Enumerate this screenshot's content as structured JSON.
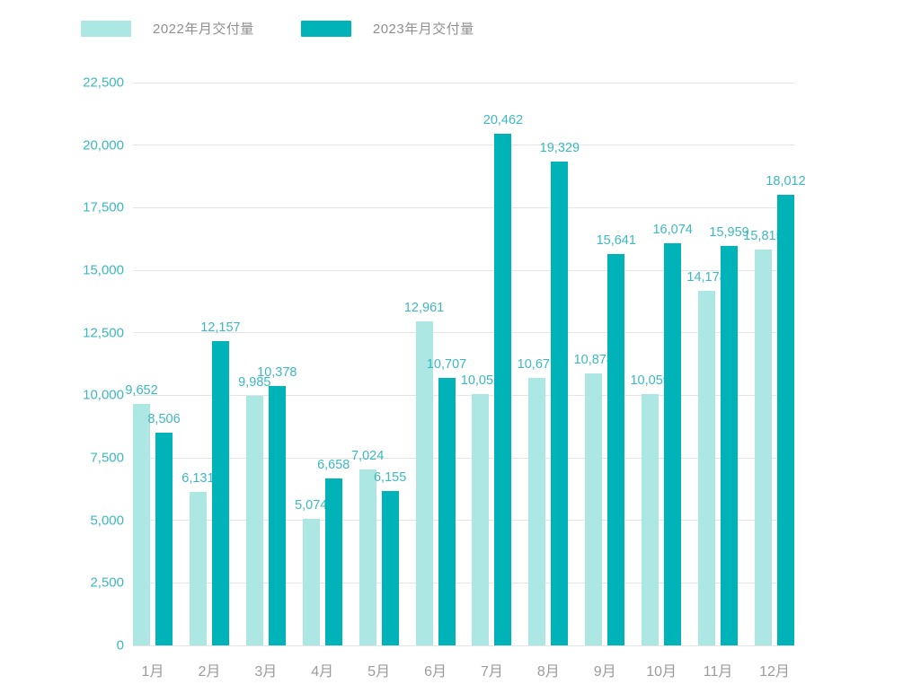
{
  "legend": {
    "items": [
      {
        "label": "2022年月交付量",
        "color": "#ade7e3"
      },
      {
        "label": "2023年月交付量",
        "color": "#00b3b8"
      }
    ]
  },
  "chart_data": {
    "type": "bar",
    "title": "",
    "categories": [
      "1月",
      "2月",
      "3月",
      "4月",
      "5月",
      "6月",
      "7月",
      "8月",
      "9月",
      "10月",
      "11月",
      "12月"
    ],
    "series": [
      {
        "name": "2022年月交付量",
        "color": "#ade7e3",
        "values": [
          9652,
          6131,
          9985,
          5074,
          7024,
          12961,
          10052,
          10677,
          10878,
          10059,
          14178,
          15815
        ]
      },
      {
        "name": "2023年月交付量",
        "color": "#00b3b8",
        "values": [
          8506,
          12157,
          10378,
          6658,
          6155,
          10707,
          20462,
          19329,
          15641,
          16074,
          15959,
          18012
        ]
      }
    ],
    "value_labels": [
      "9,652",
      "8,506",
      "6,131",
      "12,157",
      "9,985",
      "10,378",
      "5,074",
      "6,658",
      "7,024",
      "6,155",
      "12,961",
      "10,707",
      "10,052",
      "20,462",
      "10,677",
      "19,329",
      "10,878",
      "15,641",
      "10,059",
      "16,074",
      "14,178",
      "15,959",
      "15,815",
      "18,012"
    ],
    "xlabel": "",
    "ylabel": "",
    "ylim": [
      0,
      22500
    ],
    "ytick_interval": 2500,
    "yticks": [
      "22,500",
      "20,000",
      "17,500",
      "15,000",
      "12,500",
      "10,000",
      "7,500",
      "5,000",
      "2,500",
      "0"
    ],
    "grid": true,
    "legend_position": "top-left"
  },
  "colors": {
    "series_2022": "#ade7e3",
    "series_2023": "#00b3b8",
    "value_label_text": "#3cb8c2",
    "y_tick_text": "#3cb8c2",
    "x_tick_text": "#9b9b9b",
    "legend_text": "#8f8f8f",
    "gridline": "#e4e4e4",
    "background": "#ffffff"
  }
}
